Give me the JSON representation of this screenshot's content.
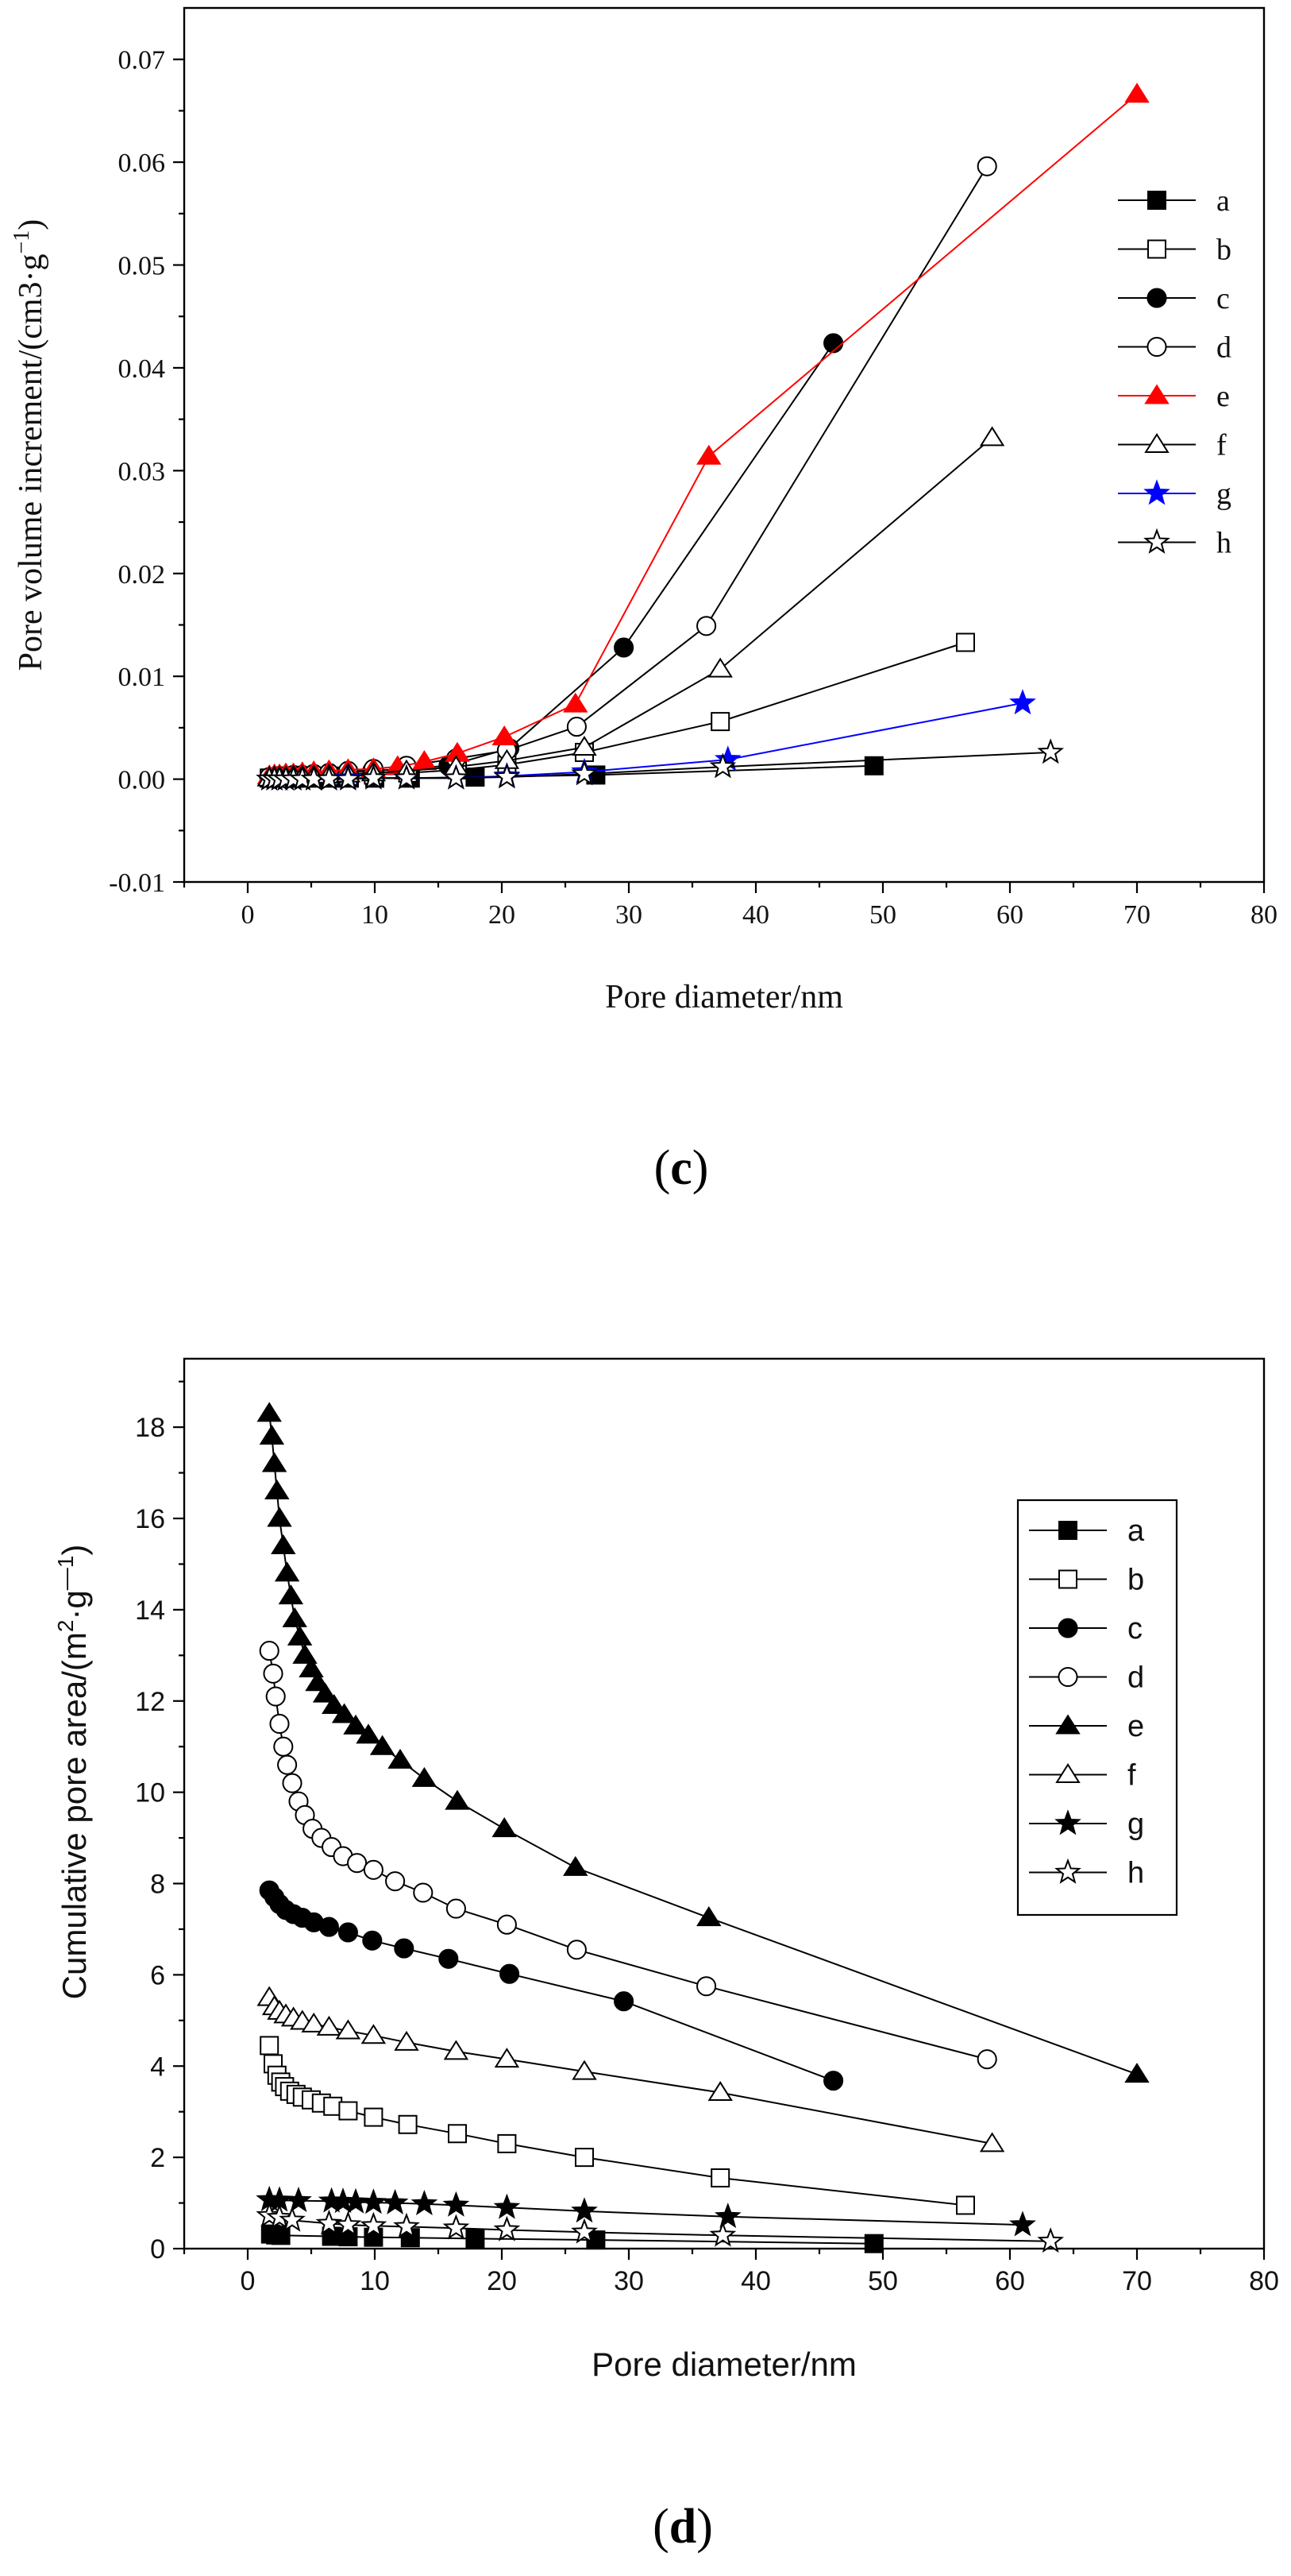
{
  "chart_data": [
    {
      "type": "line",
      "panel": "(c)",
      "caption_letter": "c",
      "xlabel": "Pore diameter/nm",
      "ylabel": "Pore volume increment/(cm3·g",
      "ylabel_sup": "−1",
      "xlim": [
        -5,
        80
      ],
      "ylim": [
        -0.01,
        0.075
      ],
      "xticks": [
        0,
        10,
        20,
        30,
        40,
        50,
        60,
        70,
        80
      ],
      "yticks": [
        -0.01,
        0.0,
        0.01,
        0.02,
        0.03,
        0.04,
        0.05,
        0.06,
        0.07
      ],
      "ytick_labels": [
        "-0.01",
        "0.00",
        "0.01",
        "0.02",
        "0.03",
        "0.04",
        "0.05",
        "0.06",
        "0.07"
      ],
      "legend_position": "right",
      "series": [
        {
          "name": "a",
          "marker": "square",
          "filled": true,
          "color": "#000000",
          "x": [
            1.8,
            2.2,
            2.6,
            3.1,
            3.7,
            4.4,
            5.3,
            6.5,
            8.0,
            10.0,
            12.8,
            17.9,
            27.4,
            49.3
          ],
          "y": [
            0.0001,
            0.0001,
            0.0001,
            0.0001,
            0.0001,
            0.0001,
            0.0001,
            0.0001,
            0.0001,
            0.0001,
            0.0001,
            0.0002,
            0.0004,
            0.0013
          ]
        },
        {
          "name": "b",
          "marker": "square",
          "filled": false,
          "color": "#000000",
          "x": [
            1.7,
            2.1,
            2.5,
            3.0,
            3.6,
            4.3,
            5.2,
            6.4,
            7.9,
            9.9,
            12.6,
            16.5,
            20.4,
            26.5,
            37.2,
            56.5
          ],
          "y": [
            0.0001,
            0.0001,
            0.0001,
            0.0001,
            0.0002,
            0.0002,
            0.0002,
            0.0003,
            0.0003,
            0.0004,
            0.0006,
            0.0009,
            0.0014,
            0.0026,
            0.0056,
            0.0133
          ]
        },
        {
          "name": "c",
          "marker": "circle",
          "filled": true,
          "color": "#000000",
          "x": [
            1.7,
            2.1,
            2.5,
            3.0,
            3.6,
            4.3,
            5.2,
            6.4,
            7.9,
            9.8,
            12.3,
            15.8,
            20.6,
            29.6,
            46.1
          ],
          "y": [
            0.0002,
            0.0002,
            0.0003,
            0.0003,
            0.0004,
            0.0004,
            0.0005,
            0.0006,
            0.0007,
            0.0008,
            0.001,
            0.0013,
            0.003,
            0.0128,
            0.0424
          ]
        },
        {
          "name": "d",
          "marker": "circle",
          "filled": false,
          "color": "#000000",
          "x": [
            1.7,
            2.1,
            2.5,
            3.0,
            3.6,
            4.3,
            5.2,
            6.4,
            7.9,
            9.9,
            12.5,
            16.4,
            20.4,
            25.9,
            36.1,
            58.2
          ],
          "y": [
            0.0002,
            0.0002,
            0.0003,
            0.0003,
            0.0004,
            0.0004,
            0.0005,
            0.0006,
            0.0008,
            0.001,
            0.0013,
            0.002,
            0.0028,
            0.0051,
            0.0149,
            0.0596
          ]
        },
        {
          "name": "e",
          "marker": "triangle",
          "filled": true,
          "color": "#ff0000",
          "x": [
            1.7,
            2.1,
            2.5,
            3.0,
            3.6,
            4.3,
            5.2,
            6.4,
            7.9,
            9.9,
            11.8,
            13.9,
            16.5,
            20.2,
            25.8,
            36.3,
            70.0
          ],
          "y": [
            0.0003,
            0.0004,
            0.0004,
            0.0005,
            0.0005,
            0.0006,
            0.0007,
            0.0008,
            0.0009,
            0.001,
            0.0012,
            0.0017,
            0.0025,
            0.0041,
            0.0073,
            0.0314,
            0.0666
          ]
        },
        {
          "name": "f",
          "marker": "triangle",
          "filled": false,
          "color": "#000000",
          "x": [
            1.7,
            2.1,
            2.5,
            3.0,
            3.6,
            4.3,
            5.2,
            6.4,
            7.9,
            9.9,
            12.5,
            16.4,
            20.4,
            26.5,
            37.2,
            58.6
          ],
          "y": [
            0.0001,
            0.0002,
            0.0002,
            0.0002,
            0.0003,
            0.0003,
            0.0003,
            0.0004,
            0.0005,
            0.0006,
            0.0008,
            0.0012,
            0.0018,
            0.0031,
            0.0107,
            0.0332
          ]
        },
        {
          "name": "g",
          "marker": "star",
          "filled": true,
          "color": "#0000ff",
          "x": [
            1.7,
            2.1,
            2.5,
            3.0,
            3.6,
            4.3,
            5.2,
            6.4,
            7.9,
            9.9,
            12.5,
            16.4,
            20.4,
            26.5,
            37.8,
            61.0
          ],
          "y": [
            0.0,
            0.0,
            0.0,
            0.0,
            0.0,
            0.0,
            0.0,
            0.0,
            0.0001,
            0.0001,
            0.0001,
            0.0001,
            0.0003,
            0.0007,
            0.0019,
            0.0074
          ]
        },
        {
          "name": "h",
          "marker": "star",
          "filled": false,
          "color": "#000000",
          "x": [
            1.7,
            2.1,
            2.5,
            3.0,
            3.6,
            4.3,
            5.2,
            6.4,
            7.9,
            9.9,
            12.5,
            16.4,
            20.4,
            26.5,
            37.4,
            63.2
          ],
          "y": [
            0.0,
            0.0,
            0.0,
            0.0,
            0.0,
            0.0,
            0.0,
            0.0,
            0.0,
            0.0001,
            0.0001,
            0.0001,
            0.0002,
            0.0005,
            0.0012,
            0.0026
          ]
        }
      ]
    },
    {
      "type": "line",
      "panel": "(d)",
      "caption_letter": "d",
      "xlabel": "Pore diameter/nm",
      "ylabel": "Cumulative pore area/(m",
      "ylabel_mid": "·g",
      "ylabel_sup1": "2",
      "ylabel_sup2": "—1",
      "xlim": [
        -5,
        80
      ],
      "ylim": [
        0,
        19.5
      ],
      "xticks": [
        0,
        10,
        20,
        30,
        40,
        50,
        60,
        70,
        80
      ],
      "yticks": [
        0,
        2,
        4,
        6,
        8,
        10,
        12,
        14,
        16,
        18
      ],
      "ytick_labels": [
        "0",
        "2",
        "4",
        "6",
        "8",
        "10",
        "12",
        "14",
        "16",
        "18"
      ],
      "legend_position": "right",
      "series": [
        {
          "name": "a",
          "marker": "square",
          "filled": true,
          "color": "#000000",
          "x": [
            1.8,
            2.2,
            2.6,
            6.6,
            7.9,
            9.9,
            12.8,
            17.9,
            27.4,
            49.3
          ],
          "y": [
            0.32,
            0.3,
            0.29,
            0.27,
            0.26,
            0.25,
            0.24,
            0.22,
            0.19,
            0.11
          ]
        },
        {
          "name": "b",
          "marker": "square",
          "filled": false,
          "color": "#000000",
          "x": [
            1.7,
            2.0,
            2.3,
            2.6,
            2.9,
            3.3,
            3.8,
            4.3,
            5.0,
            5.8,
            6.7,
            7.9,
            9.9,
            12.6,
            16.5,
            20.4,
            26.5,
            37.2,
            56.5
          ],
          "y": [
            4.45,
            4.05,
            3.8,
            3.65,
            3.55,
            3.45,
            3.38,
            3.32,
            3.26,
            3.19,
            3.12,
            3.02,
            2.88,
            2.72,
            2.52,
            2.3,
            2.0,
            1.55,
            0.95
          ]
        },
        {
          "name": "c",
          "marker": "circle",
          "filled": true,
          "color": "#000000",
          "x": [
            1.7,
            2.1,
            2.5,
            3.0,
            3.6,
            4.3,
            5.2,
            6.4,
            7.9,
            9.8,
            12.3,
            15.8,
            20.6,
            29.6,
            46.1
          ],
          "y": [
            7.85,
            7.7,
            7.55,
            7.42,
            7.33,
            7.25,
            7.15,
            7.05,
            6.93,
            6.75,
            6.58,
            6.35,
            6.02,
            5.42,
            3.68
          ]
        },
        {
          "name": "d",
          "marker": "circle",
          "filled": false,
          "color": "#000000",
          "x": [
            1.7,
            2.0,
            2.2,
            2.5,
            2.8,
            3.1,
            3.5,
            4.0,
            4.5,
            5.1,
            5.8,
            6.6,
            7.5,
            8.6,
            9.9,
            11.6,
            13.8,
            16.4,
            20.4,
            25.9,
            36.1,
            58.2
          ],
          "y": [
            13.1,
            12.6,
            12.1,
            11.5,
            11.0,
            10.6,
            10.2,
            9.8,
            9.5,
            9.2,
            9.0,
            8.8,
            8.6,
            8.45,
            8.3,
            8.05,
            7.8,
            7.45,
            7.1,
            6.55,
            5.75,
            4.15
          ]
        },
        {
          "name": "e",
          "marker": "triangle",
          "filled": true,
          "color": "#000000",
          "x": [
            1.7,
            1.9,
            2.1,
            2.3,
            2.5,
            2.8,
            3.1,
            3.4,
            3.7,
            4.1,
            4.5,
            5.0,
            5.5,
            6.1,
            6.8,
            7.6,
            8.5,
            9.5,
            10.6,
            12.0,
            13.9,
            16.5,
            20.2,
            25.8,
            36.3,
            70.0
          ],
          "y": [
            18.3,
            17.8,
            17.2,
            16.6,
            16.0,
            15.4,
            14.8,
            14.3,
            13.8,
            13.4,
            13.0,
            12.7,
            12.4,
            12.15,
            11.9,
            11.7,
            11.45,
            11.25,
            11.0,
            10.7,
            10.3,
            9.8,
            9.2,
            8.35,
            7.25,
            3.82
          ]
        },
        {
          "name": "f",
          "marker": "triangle",
          "filled": false,
          "color": "#000000",
          "x": [
            1.7,
            2.1,
            2.5,
            3.0,
            3.6,
            4.3,
            5.2,
            6.4,
            7.9,
            9.9,
            12.5,
            16.4,
            20.4,
            26.5,
            37.2,
            58.6
          ],
          "y": [
            5.5,
            5.3,
            5.2,
            5.12,
            5.05,
            4.98,
            4.92,
            4.85,
            4.77,
            4.67,
            4.52,
            4.32,
            4.15,
            3.88,
            3.42,
            2.3
          ]
        },
        {
          "name": "g",
          "marker": "star",
          "filled": true,
          "color": "#000000",
          "x": [
            1.7,
            2.5,
            4.0,
            6.6,
            7.5,
            8.5,
            9.9,
            11.6,
            13.9,
            16.4,
            20.4,
            26.5,
            37.8,
            61.0
          ],
          "y": [
            1.07,
            1.06,
            1.05,
            1.04,
            1.03,
            1.02,
            1.01,
            1.0,
            0.98,
            0.95,
            0.9,
            0.82,
            0.7,
            0.52
          ]
        },
        {
          "name": "h",
          "marker": "star",
          "filled": false,
          "color": "#000000",
          "x": [
            1.7,
            2.5,
            3.5,
            6.4,
            7.9,
            9.9,
            12.5,
            16.4,
            20.4,
            26.5,
            37.4,
            63.2
          ],
          "y": [
            0.72,
            0.68,
            0.62,
            0.55,
            0.52,
            0.5,
            0.48,
            0.45,
            0.41,
            0.36,
            0.29,
            0.16
          ]
        }
      ]
    }
  ]
}
